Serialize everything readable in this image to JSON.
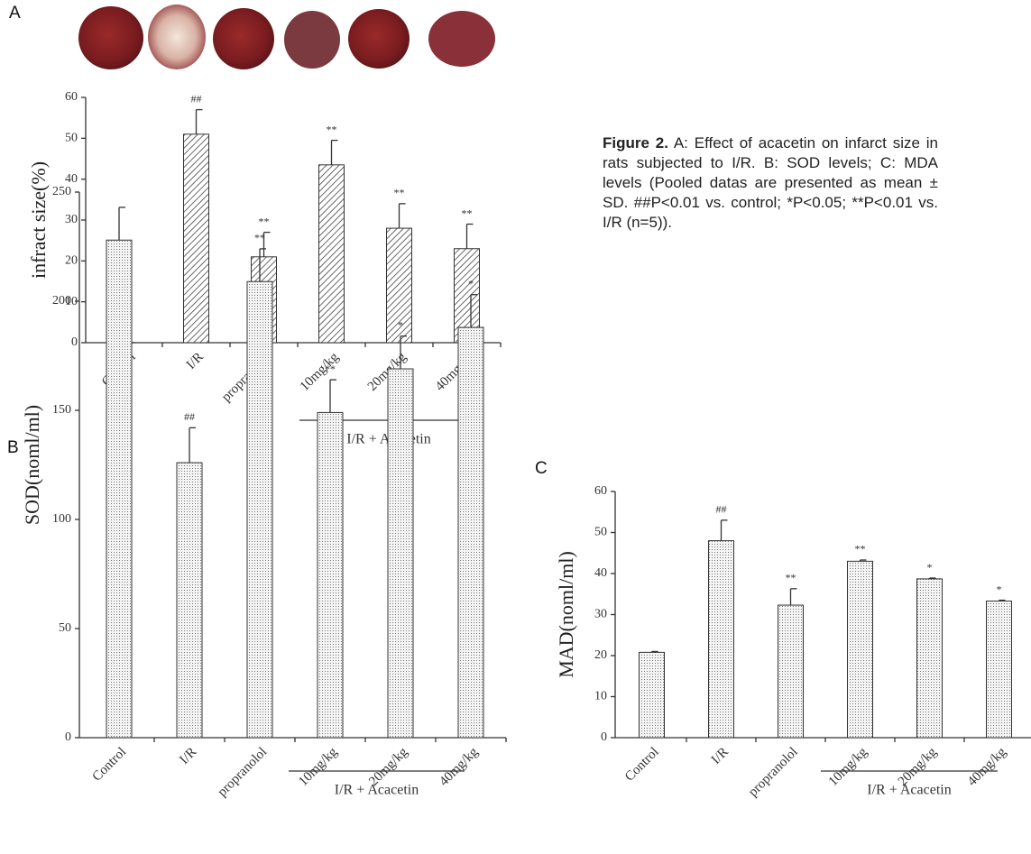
{
  "chart_data": [
    {
      "type": "bar",
      "panel": "A",
      "ylabel": "infract size(%)",
      "categories": [
        "Control",
        "I/R",
        "propranolol",
        "10mg/kg",
        "20mg/kg",
        "40mg/kg"
      ],
      "values": [
        0,
        51,
        21,
        43.5,
        28,
        23
      ],
      "errors": [
        0,
        6,
        6,
        6,
        6,
        6
      ],
      "annotations": [
        null,
        "##",
        "**",
        "**",
        "**",
        "**"
      ],
      "group_label": "I/R + Acacetin",
      "pattern": "hatch",
      "ylim": [
        0,
        60
      ],
      "yticks": [
        0,
        10,
        20,
        30,
        40,
        50,
        60
      ]
    },
    {
      "type": "bar",
      "panel": "B",
      "ylabel": "SOD(noml/ml)",
      "categories": [
        "Control",
        "I/R",
        "propranolol",
        "10mg/kg",
        "20mg/kg",
        "40mg/kg"
      ],
      "values": [
        228,
        126,
        209,
        149,
        169,
        188
      ],
      "errors": [
        15,
        16,
        15,
        15,
        15,
        15
      ],
      "annotations": [
        null,
        "##",
        "**",
        "**",
        "*",
        "*"
      ],
      "group_label": "I/R + Acacetin",
      "pattern": "dots",
      "ylim": [
        0,
        250
      ],
      "yticks": [
        0,
        50,
        100,
        150,
        200,
        250
      ]
    },
    {
      "type": "bar",
      "panel": "C",
      "ylabel": "MAD(noml/ml)",
      "categories": [
        "Control",
        "I/R",
        "propranolol",
        "10mg/kg",
        "20mg/kg",
        "40mg/kg"
      ],
      "values": [
        20.8,
        48,
        32.3,
        43,
        38.7,
        33.3
      ],
      "errors": [
        0.2,
        5,
        4,
        0.3,
        0.2,
        0.2
      ],
      "annotations": [
        null,
        "##",
        "**",
        "**",
        "*",
        "*"
      ],
      "group_label": "I/R + Acacetin",
      "pattern": "dots",
      "ylim": [
        0,
        60
      ],
      "yticks": [
        0,
        10,
        20,
        30,
        40,
        50,
        60
      ]
    }
  ],
  "caption": {
    "label": "Figure 2.",
    "text": "A: Effect of acacetin on infarct size in rats subjected to I/R. B: SOD levels; C: MDA levels (Pooled datas are presented as mean ± SD. ##P<0.01 vs. control; *P<0.05; **P<0.01 vs. I/R (n=5))."
  }
}
